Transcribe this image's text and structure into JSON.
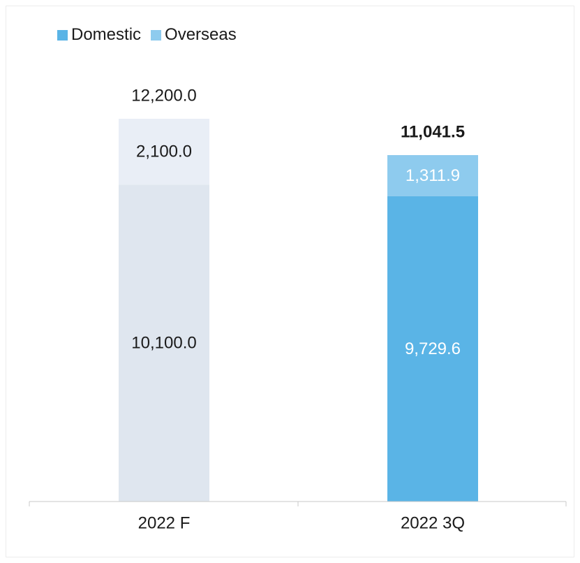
{
  "legend": {
    "domestic": "Domestic",
    "overseas": "Overseas"
  },
  "colors": {
    "domestic": "#5ab4e6",
    "overseas": "#8ecbee",
    "forecast_domestic": "#dfe6ef",
    "forecast_overseas": "#e9eef6",
    "axis": "#c8c8c8"
  },
  "chart_data": {
    "type": "bar",
    "stacked": true,
    "categories": [
      "2022 F",
      "2022 3Q"
    ],
    "series": [
      {
        "name": "Domestic",
        "values": [
          10100.0,
          9729.6
        ],
        "labels": [
          "10,100.0",
          "9,729.6"
        ]
      },
      {
        "name": "Overseas",
        "values": [
          2100.0,
          1311.9
        ],
        "labels": [
          "2,100.0",
          "1,311.9"
        ]
      }
    ],
    "totals": [
      12200.0,
      11041.5
    ],
    "total_labels": [
      "12,200.0",
      "11,041.5"
    ],
    "legend_position": "top-left",
    "grid": false,
    "title": "",
    "xlabel": "",
    "ylabel": ""
  }
}
